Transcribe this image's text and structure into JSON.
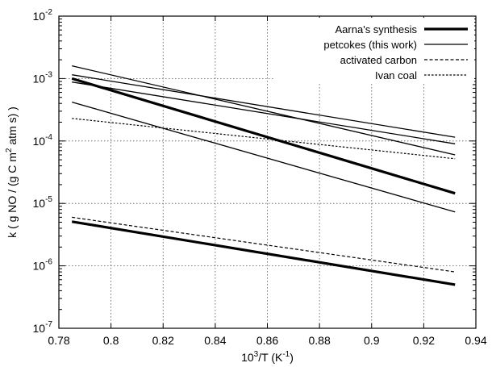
{
  "chart_data": {
    "type": "line",
    "xlabel_base": "10",
    "xlabel_sup": "3",
    "xlabel_mid": "/T (K",
    "xlabel_sup2": "-1",
    "xlabel_end": ")",
    "ylabel_start": "k ( g NO / (g C m",
    "ylabel_sup": "2",
    "ylabel_end": " atm s) )",
    "xlim": [
      0.78,
      0.94
    ],
    "ylim": [
      1e-07,
      0.01
    ],
    "yscale": "log",
    "grid": true,
    "legend_position": "top-right",
    "x_ticks": [
      "0.78",
      "0.8",
      "0.82",
      "0.84",
      "0.86",
      "0.88",
      "0.9",
      "0.92",
      "0.94"
    ],
    "y_ticks": [
      {
        "base": "10",
        "exp": "-7"
      },
      {
        "base": "10",
        "exp": "-6"
      },
      {
        "base": "10",
        "exp": "-5"
      },
      {
        "base": "10",
        "exp": "-4"
      },
      {
        "base": "10",
        "exp": "-3"
      },
      {
        "base": "10",
        "exp": "-2"
      }
    ],
    "series": [
      {
        "name": "Aarna's synthesis",
        "style": "thick",
        "lines": [
          {
            "x": [
              0.785,
              0.932
            ],
            "y": [
              0.001,
              1.45e-05
            ]
          },
          {
            "x": [
              0.785,
              0.932
            ],
            "y": [
              5.1e-06,
              5e-07
            ]
          }
        ]
      },
      {
        "name": "petcokes (this work)",
        "style": "solid",
        "lines": [
          {
            "x": [
              0.785,
              0.932
            ],
            "y": [
              0.0016,
              6e-05
            ]
          },
          {
            "x": [
              0.785,
              0.932
            ],
            "y": [
              0.00115,
              0.000115
            ]
          },
          {
            "x": [
              0.785,
              0.932
            ],
            "y": [
              0.00088,
              9e-05
            ]
          },
          {
            "x": [
              0.785,
              0.932
            ],
            "y": [
              0.00042,
              7.3e-06
            ]
          }
        ]
      },
      {
        "name": "activated carbon",
        "style": "dashed",
        "lines": [
          {
            "x": [
              0.785,
              0.932
            ],
            "y": [
              6e-06,
              8e-07
            ]
          }
        ]
      },
      {
        "name": "Ivan coal",
        "style": "dotted",
        "lines": [
          {
            "x": [
              0.785,
              0.932
            ],
            "y": [
              0.00023,
              5.2e-05
            ]
          }
        ]
      }
    ]
  }
}
